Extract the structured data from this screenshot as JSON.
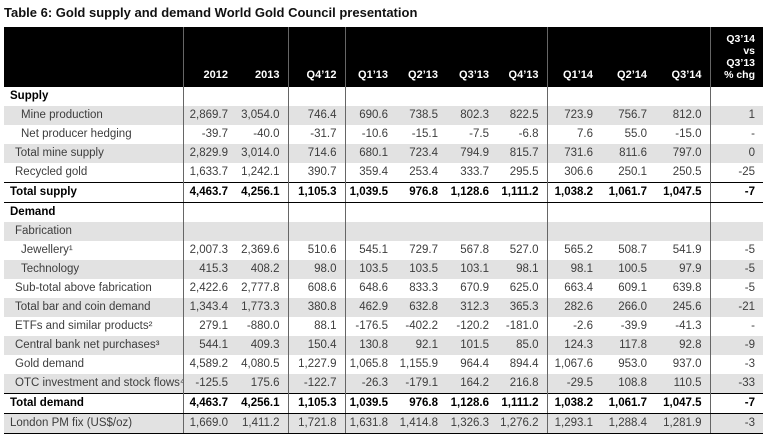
{
  "title": "Table 6: Gold supply and demand World Gold Council presentation",
  "colors": {
    "header_bg": "#000000",
    "row_stripe": "#e2e2e2",
    "grid_line": "#666666",
    "body_text": "#3d3d3d",
    "rule_line": "#000000"
  },
  "table": {
    "columns": [
      "",
      "2012",
      "2013",
      "Q4’12",
      "Q1’13",
      "Q2’13",
      "Q3’13",
      "Q4’13",
      "Q1’14",
      "Q2’14",
      "Q3’14",
      "Q3’14\nvs\nQ3’13\n% chg"
    ],
    "rows": [
      {
        "label": "Supply",
        "indent": 0,
        "bold": true,
        "shade": false,
        "top_border": false,
        "bottom_border": false,
        "values": [
          "",
          "",
          "",
          "",
          "",
          "",
          "",
          "",
          "",
          "",
          ""
        ]
      },
      {
        "label": "Mine production",
        "indent": 2,
        "bold": false,
        "shade": true,
        "top_border": false,
        "bottom_border": false,
        "values": [
          "2,869.7",
          "3,054.0",
          "746.4",
          "690.6",
          "738.5",
          "802.3",
          "822.5",
          "723.9",
          "756.7",
          "812.0",
          "1"
        ]
      },
      {
        "label": "Net producer hedging",
        "indent": 2,
        "bold": false,
        "shade": false,
        "top_border": false,
        "bottom_border": false,
        "values": [
          "-39.7",
          "-40.0",
          "-31.7",
          "-10.6",
          "-15.1",
          "-7.5",
          "-6.8",
          "7.6",
          "55.0",
          "-15.0",
          "-"
        ]
      },
      {
        "label": "Total mine supply",
        "indent": 1,
        "bold": false,
        "shade": true,
        "top_border": false,
        "bottom_border": false,
        "values": [
          "2,829.9",
          "3,014.0",
          "714.6",
          "680.1",
          "723.4",
          "794.9",
          "815.7",
          "731.6",
          "811.6",
          "797.0",
          "0"
        ]
      },
      {
        "label": "Recycled gold",
        "indent": 1,
        "bold": false,
        "shade": false,
        "top_border": false,
        "bottom_border": false,
        "values": [
          "1,633.7",
          "1,242.1",
          "390.7",
          "359.4",
          "253.4",
          "333.7",
          "295.5",
          "306.6",
          "250.1",
          "250.5",
          "-25"
        ]
      },
      {
        "label": "Total supply",
        "indent": 0,
        "bold": true,
        "shade": false,
        "top_border": true,
        "bottom_border": true,
        "values": [
          "4,463.7",
          "4,256.1",
          "1,105.3",
          "1,039.5",
          "976.8",
          "1,128.6",
          "1,111.2",
          "1,038.2",
          "1,061.7",
          "1,047.5",
          "-7"
        ]
      },
      {
        "label": "Demand",
        "indent": 0,
        "bold": true,
        "shade": false,
        "top_border": false,
        "bottom_border": false,
        "values": [
          "",
          "",
          "",
          "",
          "",
          "",
          "",
          "",
          "",
          "",
          ""
        ]
      },
      {
        "label": "Fabrication",
        "indent": 1,
        "bold": false,
        "shade": true,
        "top_border": false,
        "bottom_border": false,
        "values": [
          "",
          "",
          "",
          "",
          "",
          "",
          "",
          "",
          "",
          "",
          ""
        ]
      },
      {
        "label": "Jewellery¹",
        "indent": 2,
        "bold": false,
        "shade": false,
        "top_border": false,
        "bottom_border": false,
        "values": [
          "2,007.3",
          "2,369.6",
          "510.6",
          "545.1",
          "729.7",
          "567.8",
          "527.0",
          "565.2",
          "508.7",
          "541.9",
          "-5"
        ]
      },
      {
        "label": "Technology",
        "indent": 2,
        "bold": false,
        "shade": true,
        "top_border": false,
        "bottom_border": false,
        "values": [
          "415.3",
          "408.2",
          "98.0",
          "103.5",
          "103.5",
          "103.1",
          "98.1",
          "98.1",
          "100.5",
          "97.9",
          "-5"
        ]
      },
      {
        "label": "Sub-total above fabrication",
        "indent": 1,
        "bold": false,
        "shade": false,
        "top_border": false,
        "bottom_border": false,
        "values": [
          "2,422.6",
          "2,777.8",
          "608.6",
          "648.6",
          "833.3",
          "670.9",
          "625.0",
          "663.4",
          "609.1",
          "639.8",
          "-5"
        ]
      },
      {
        "label": "Total bar and coin demand",
        "indent": 1,
        "bold": false,
        "shade": true,
        "top_border": false,
        "bottom_border": false,
        "values": [
          "1,343.4",
          "1,773.3",
          "380.8",
          "462.9",
          "632.8",
          "312.3",
          "365.3",
          "282.6",
          "266.0",
          "245.6",
          "-21"
        ]
      },
      {
        "label": "ETFs and similar products²",
        "indent": 1,
        "bold": false,
        "shade": false,
        "top_border": false,
        "bottom_border": false,
        "values": [
          "279.1",
          "-880.0",
          "88.1",
          "-176.5",
          "-402.2",
          "-120.2",
          "-181.0",
          "-2.6",
          "-39.9",
          "-41.3",
          "-"
        ]
      },
      {
        "label": "Central bank net purchases³",
        "indent": 1,
        "bold": false,
        "shade": true,
        "top_border": false,
        "bottom_border": false,
        "values": [
          "544.1",
          "409.3",
          "150.4",
          "130.8",
          "92.1",
          "101.5",
          "85.0",
          "124.3",
          "117.8",
          "92.8",
          "-9"
        ]
      },
      {
        "label": "Gold demand",
        "indent": 1,
        "bold": false,
        "shade": false,
        "top_border": false,
        "bottom_border": false,
        "values": [
          "4,589.2",
          "4,080.5",
          "1,227.9",
          "1,065.8",
          "1,155.9",
          "964.4",
          "894.4",
          "1,067.6",
          "953.0",
          "937.0",
          "-3"
        ]
      },
      {
        "label": "OTC investment and stock flows⁴",
        "indent": 1,
        "bold": false,
        "shade": true,
        "top_border": false,
        "bottom_border": false,
        "values": [
          "-125.5",
          "175.6",
          "-122.7",
          "-26.3",
          "-179.1",
          "164.2",
          "216.8",
          "-29.5",
          "108.8",
          "110.5",
          "-33"
        ]
      },
      {
        "label": "Total demand",
        "indent": 0,
        "bold": true,
        "shade": false,
        "top_border": true,
        "bottom_border": true,
        "values": [
          "4,463.7",
          "4,256.1",
          "1,105.3",
          "1,039.5",
          "976.8",
          "1,128.6",
          "1,111.2",
          "1,038.2",
          "1,061.7",
          "1,047.5",
          "-7"
        ]
      },
      {
        "label": "London PM fix (US$/oz)",
        "indent": 0,
        "bold": false,
        "shade": true,
        "top_border": false,
        "bottom_border": true,
        "values": [
          "1,669.0",
          "1,411.2",
          "1,721.8",
          "1,631.8",
          "1,414.8",
          "1,326.3",
          "1,276.2",
          "1,293.1",
          "1,288.4",
          "1,281.9",
          "-3"
        ]
      }
    ]
  }
}
